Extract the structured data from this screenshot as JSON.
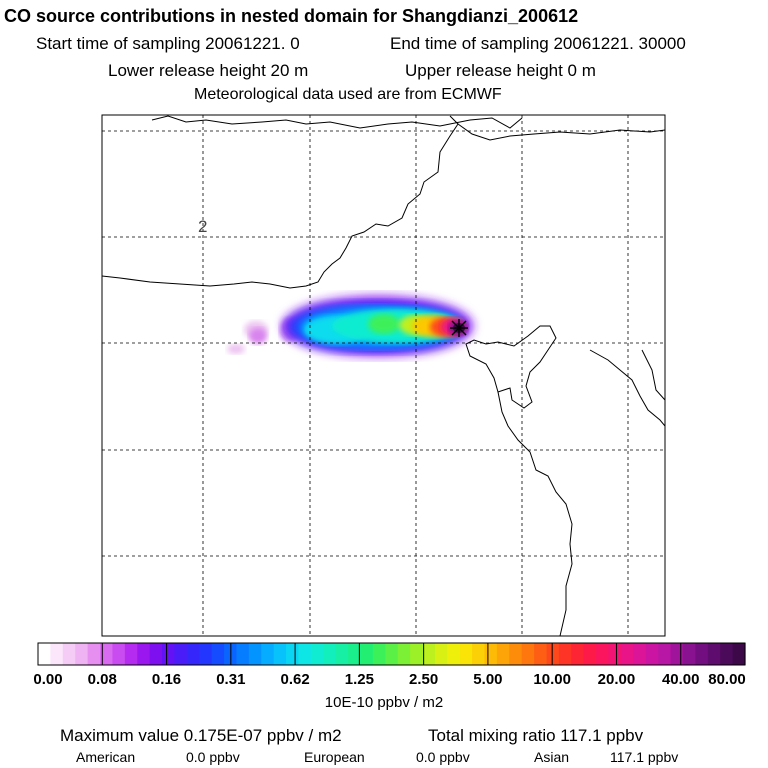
{
  "header": {
    "title": "CO  source contributions in nested domain for Shangdianzi_200612",
    "start_label": "Start time of sampling 20061221.     0",
    "end_label": "End time of sampling 20061221. 30000",
    "lower_label": "Lower release height   20 m",
    "upper_label": "Upper release height    0 m",
    "met_label": "Meteorological data used are from ECMWF"
  },
  "map": {
    "grid_label": "2",
    "receptor_marker": "station-star-icon"
  },
  "colorbar": {
    "ticks": [
      "0.00",
      "0.08",
      "0.16",
      "0.31",
      "0.62",
      "1.25",
      "2.50",
      "5.00",
      "10.00",
      "20.00",
      "40.00",
      "80.00"
    ],
    "unit": "10E-10 ppbv / m2",
    "colors": [
      "#ffffff",
      "#fbe6fb",
      "#f5ccf5",
      "#efb3f3",
      "#e68ff0",
      "#d96bf0",
      "#c94cf0",
      "#b52cf0",
      "#9a17f0",
      "#7e10f0",
      "#6212f5",
      "#4a1cf8",
      "#3526fb",
      "#2236fd",
      "#154cff",
      "#0a64ff",
      "#067cff",
      "#0494ff",
      "#05acff",
      "#07c2fb",
      "#0ad6f3",
      "#0ee6e6",
      "#10ecd2",
      "#12eebc",
      "#16efa4",
      "#1aef8c",
      "#22ef72",
      "#3cf05a",
      "#5af045",
      "#7cf034",
      "#9cf028",
      "#bcf01e",
      "#d8f014",
      "#eef00c",
      "#fae408",
      "#fcd006",
      "#fdba06",
      "#fda408",
      "#fd8c0a",
      "#fd760e",
      "#fd5e14",
      "#fd481c",
      "#fd3426",
      "#fd2434",
      "#fd1a48",
      "#fa155e",
      "#f21474",
      "#e81488",
      "#dc1498",
      "#cc14a2",
      "#b816a4",
      "#a0149c",
      "#881290",
      "#720e80",
      "#5e0c6e",
      "#4c0a5a",
      "#3c0848"
    ]
  },
  "footer": {
    "max_label": "Maximum value  0.175E-07 ppbv / m2",
    "total_label": "Total mixing ratio     117.1 ppbv",
    "american_label": "American",
    "american_value": "0.0 ppbv",
    "european_label": "European",
    "european_value": "0.0 ppbv",
    "asian_label": "Asian",
    "asian_value": "117.1 ppbv"
  }
}
